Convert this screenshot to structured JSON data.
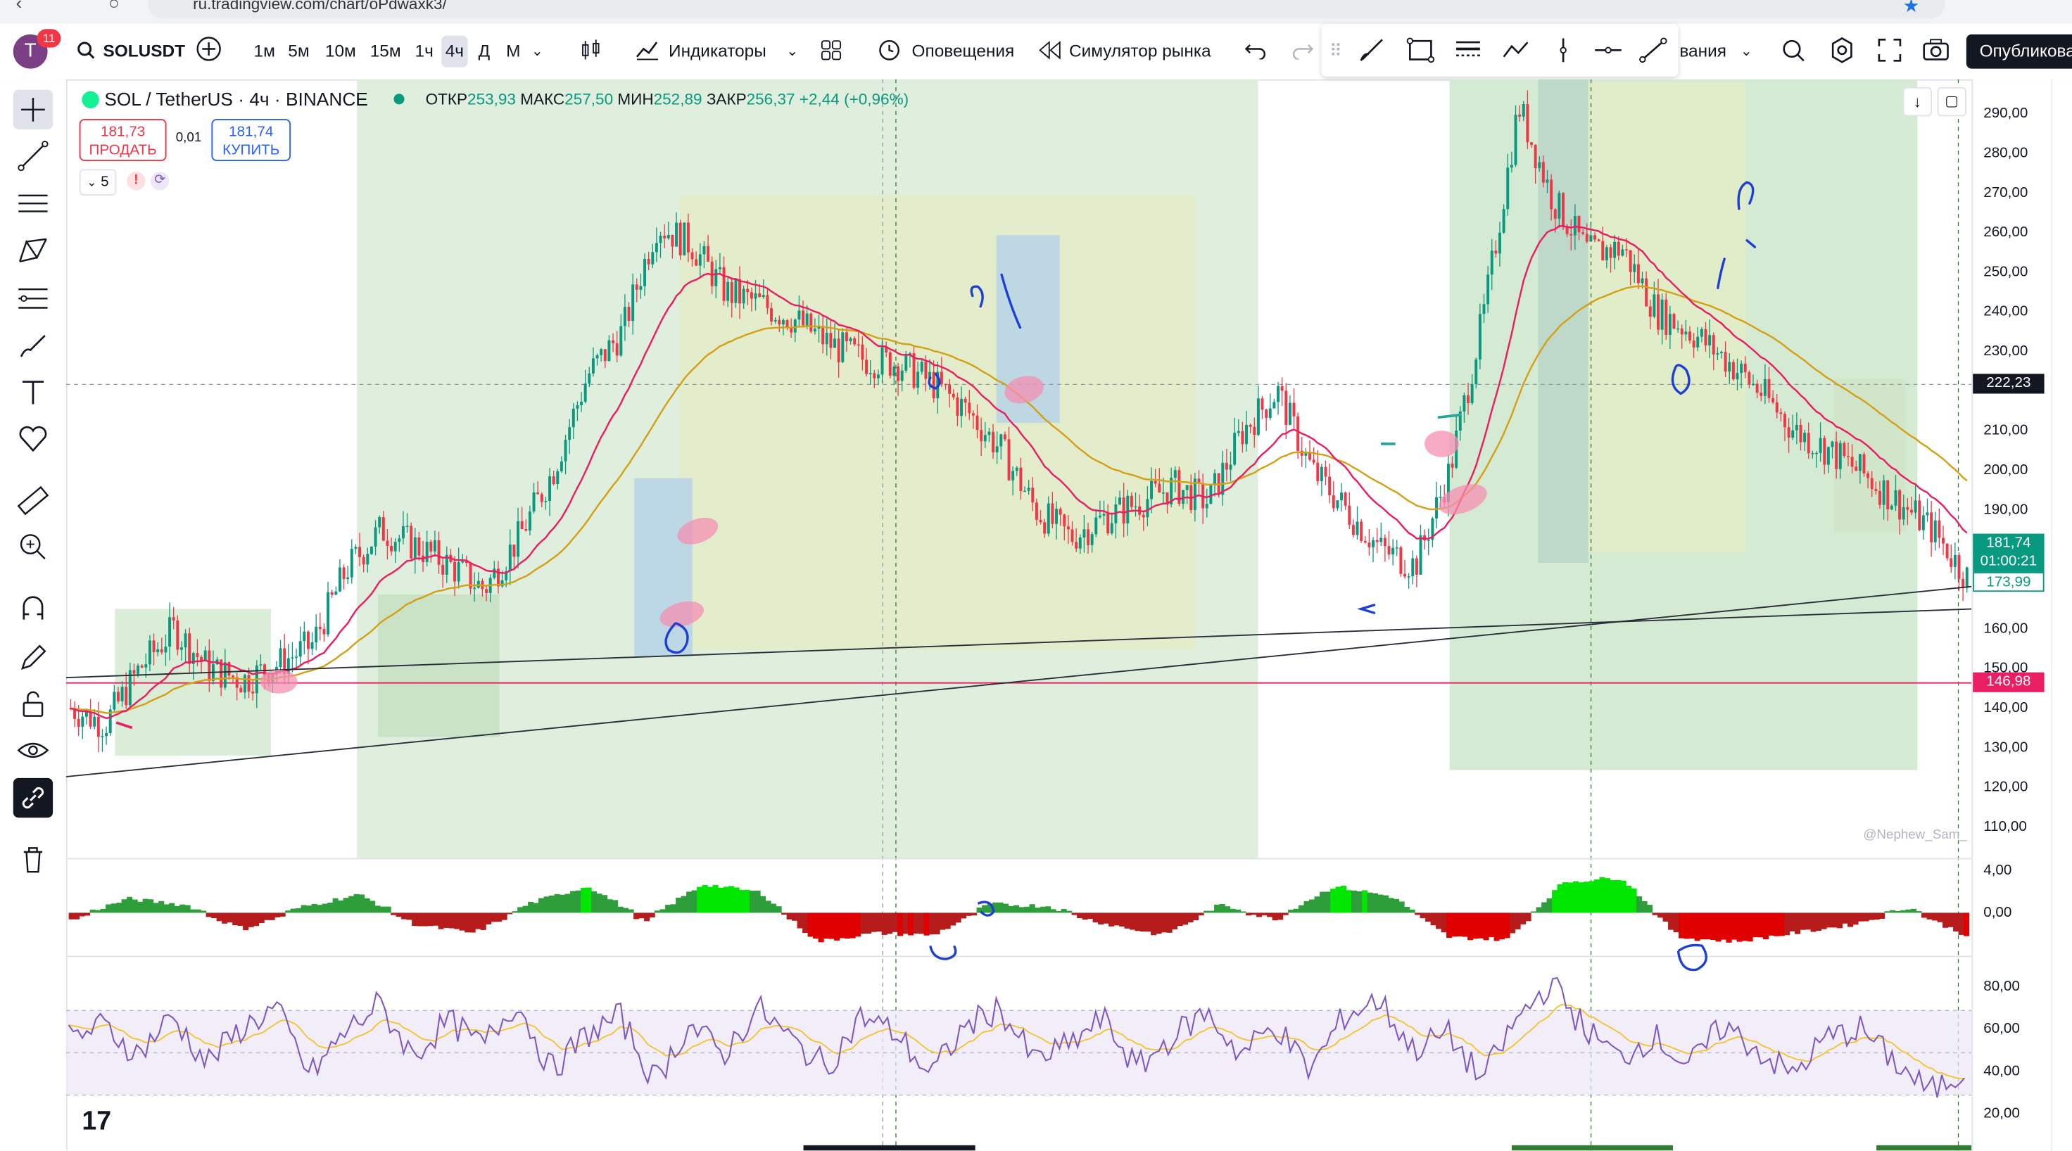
{
  "browser": {
    "url": "ru.tradingview.com/chart/oPdwaxk3/"
  },
  "toolbar": {
    "avatar_letter": "T",
    "notifications": "11",
    "symbol": "SOLUSDT",
    "timeframes": [
      "1м",
      "5м",
      "10м",
      "15м",
      "1ч",
      "4ч",
      "Д",
      "М"
    ],
    "active_timeframe": "4ч",
    "indicators_label": "Индикаторы",
    "alerts_label": "Оповещения",
    "replay_label": "Симулятор рынка",
    "partial_menu_label": "вания",
    "publish_label": "Опубликова"
  },
  "chart_header": {
    "pair": "SOL / TetherUS · 4ч · BINANCE",
    "open_label": "ОТКР",
    "open": "253,93",
    "high_label": "МАКС",
    "high": "257,50",
    "low_label": "МИН",
    "low": "252,89",
    "close_label": "ЗАКР",
    "close": "256,37",
    "change": "+2,44 (+0,96%)"
  },
  "trade": {
    "sell_price": "181,73",
    "sell_label": "ПРОДАТЬ",
    "spread": "0,01",
    "buy_price": "181,74",
    "buy_label": "КУПИТЬ",
    "indicator_count": "5"
  },
  "price_scale": {
    "ticks": [
      "290,00",
      "280,00",
      "270,00",
      "260,00",
      "250,00",
      "240,00",
      "230,00",
      "210,00",
      "200,00",
      "190,00",
      "160,00",
      "150,00",
      "140,00",
      "130,00",
      "120,00",
      "110,00"
    ],
    "crosshair_price": "222,23",
    "last_price": "181,74",
    "countdown": "01:00:21",
    "ma_price": "173,99",
    "level_price": "146,98"
  },
  "osc_scale": {
    "ticks": [
      "4,00",
      "0,00"
    ]
  },
  "rsi_scale": {
    "ticks": [
      "80,00",
      "60,00",
      "40,00",
      "20,00"
    ]
  },
  "watermark": "@Nephew_Sam_",
  "logo": "17",
  "colors": {
    "up": "#089981",
    "down": "#f23645",
    "ema_fast": "#e91e63",
    "ema_slow": "#d4a017",
    "rsi": "#7e57c2",
    "zone_green": "#c8e6c9",
    "zone_blue": "#b3cde8",
    "annotation": "#1e3fd6",
    "brand": "#2962ff"
  },
  "chart_data": {
    "type": "candlestick",
    "symbol": "SOL / TetherUS",
    "interval": "4ч",
    "ylim": [
      105,
      295
    ],
    "last_price": 181.74,
    "horizontal_levels": [
      146.98,
      222.23
    ],
    "price_path": [
      140,
      136,
      150,
      160,
      150,
      147,
      151,
      156,
      175,
      185,
      181,
      176,
      170,
      183,
      200,
      224,
      235,
      262,
      257,
      245,
      242,
      238,
      232,
      228,
      227,
      222,
      215,
      205,
      190,
      183,
      188,
      192,
      196,
      192,
      210,
      220,
      200,
      190,
      180,
      176,
      200,
      240,
      292,
      268,
      255,
      256,
      240,
      235,
      228,
      220,
      210,
      205,
      199,
      192,
      185,
      173
    ],
    "rsi_path": [
      55,
      62,
      48,
      66,
      44,
      60,
      70,
      38,
      58,
      72,
      47,
      64,
      52,
      73,
      40,
      57,
      66,
      35,
      62,
      48,
      70,
      54,
      42,
      66,
      58,
      38,
      61,
      70,
      45,
      52,
      65,
      41,
      56,
      68,
      48,
      62,
      40,
      66,
      74,
      50,
      58,
      36,
      64,
      82,
      60,
      46,
      57,
      42,
      62,
      50,
      38,
      56,
      60,
      44,
      30,
      40
    ],
    "osc_values": [
      -0.6,
      1.2,
      0.6,
      -1.4,
      0.4,
      1.6,
      -1.0,
      -1.8,
      0.8,
      2.4,
      -0.8,
      2.6,
      1.8,
      -2.6,
      -1.8,
      -2.0,
      0.7,
      0.5,
      -0.9,
      -2.0,
      0.6,
      -0.5,
      2.4,
      1.4,
      -2.2,
      -2.4,
      2.8,
      3.2,
      -2.2,
      -2.6,
      -1.8,
      -1.0,
      0.4,
      -2.0
    ]
  }
}
